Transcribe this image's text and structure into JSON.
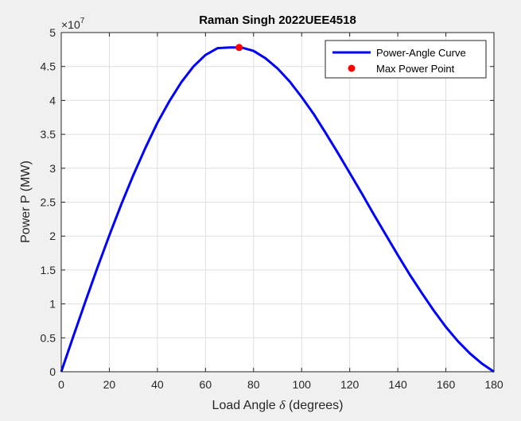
{
  "chart_data": {
    "type": "line",
    "title": "Raman Singh 2022UEE4518",
    "xlabel_prefix": "Load Angle ",
    "xlabel_symbol": "δ",
    "xlabel_suffix": " (degrees)",
    "ylabel": "Power P (MW)",
    "y_exponent_base": "×10",
    "y_exponent_power": "7",
    "xlim": [
      0,
      180
    ],
    "ylim": [
      0,
      5
    ],
    "x_scale": 10000000,
    "xticks": [
      0,
      20,
      40,
      60,
      80,
      100,
      120,
      140,
      160,
      180
    ],
    "yticks": [
      0,
      0.5,
      1,
      1.5,
      2,
      2.5,
      3,
      3.5,
      4,
      4.5,
      5
    ],
    "xtick_labels": [
      "0",
      "20",
      "40",
      "60",
      "80",
      "100",
      "120",
      "140",
      "160",
      "180"
    ],
    "ytick_labels": [
      "0",
      "0.5",
      "1",
      "1.5",
      "2",
      "2.5",
      "3",
      "3.5",
      "4",
      "4.5",
      "5"
    ],
    "grid": true,
    "legend_position": "top-right",
    "series": [
      {
        "name": "Power-Angle Curve",
        "kind": "line",
        "color": "#0000ff",
        "x": [
          0,
          5,
          10,
          15,
          20,
          25,
          30,
          35,
          40,
          45,
          50,
          55,
          60,
          65,
          70,
          74,
          75,
          80,
          85,
          90,
          95,
          100,
          105,
          110,
          115,
          120,
          125,
          130,
          135,
          140,
          145,
          150,
          155,
          160,
          165,
          170,
          175,
          180
        ],
        "y": [
          0,
          0.52,
          1.03,
          1.53,
          2.01,
          2.47,
          2.9,
          3.3,
          3.67,
          3.99,
          4.27,
          4.5,
          4.67,
          4.77,
          4.78,
          4.78,
          4.78,
          4.73,
          4.62,
          4.47,
          4.28,
          4.05,
          3.8,
          3.52,
          3.23,
          2.93,
          2.63,
          2.32,
          2.02,
          1.72,
          1.43,
          1.16,
          0.9,
          0.66,
          0.45,
          0.27,
          0.12,
          0
        ]
      },
      {
        "name": "Max Power Point",
        "kind": "marker",
        "color": "#ff0000",
        "x": [
          74
        ],
        "y": [
          4.78
        ]
      }
    ]
  }
}
